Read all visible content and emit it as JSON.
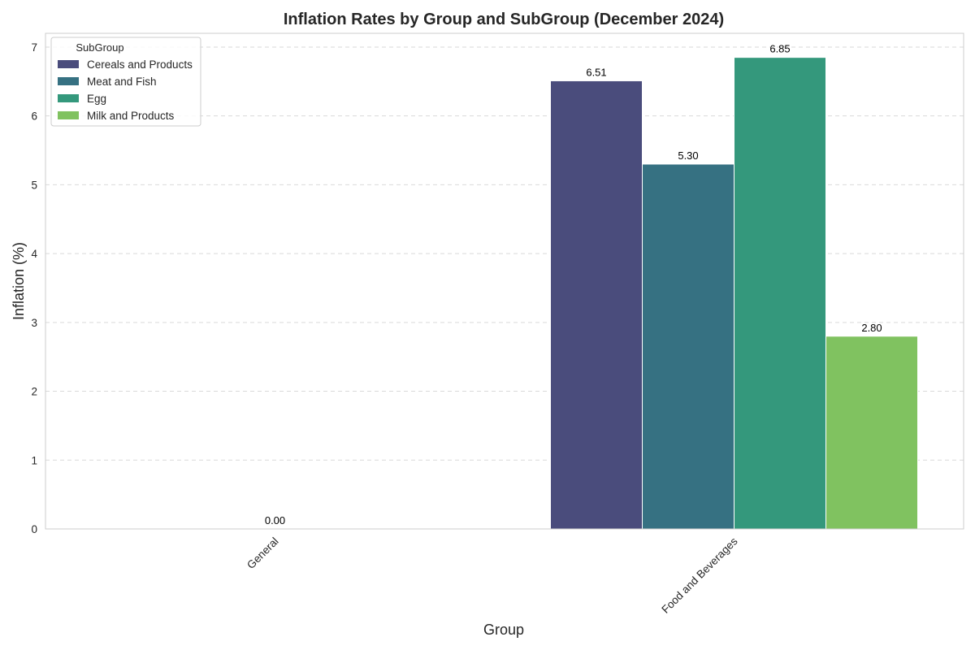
{
  "chart_data": {
    "type": "bar",
    "title": "Inflation Rates by Group and SubGroup (December 2024)",
    "xlabel": "Group",
    "ylabel": "Inflation (%)",
    "categories": [
      "General",
      "Food and Beverages"
    ],
    "series": [
      {
        "name": "Cereals and Products",
        "color": "#4a4c7c",
        "values": [
          0,
          6.51
        ]
      },
      {
        "name": "Meat and Fish",
        "color": "#367182",
        "values": [
          0,
          5.3
        ]
      },
      {
        "name": "Egg",
        "color": "#34987c",
        "values": [
          0,
          6.85
        ]
      },
      {
        "name": "Milk and Products",
        "color": "#80c260",
        "values": [
          0,
          2.8
        ]
      }
    ],
    "data_labels": [
      {
        "text": "0.00",
        "category": 0,
        "value": 0
      },
      {
        "text": "6.51",
        "category": 1,
        "series": 0,
        "value": 6.51
      },
      {
        "text": "5.30",
        "category": 1,
        "series": 1,
        "value": 5.3
      },
      {
        "text": "6.85",
        "category": 1,
        "series": 2,
        "value": 6.85
      },
      {
        "text": "2.80",
        "category": 1,
        "series": 3,
        "value": 2.8
      }
    ],
    "ylim": [
      0,
      7.2
    ],
    "yticks": [
      "0",
      "1",
      "2",
      "3",
      "4",
      "5",
      "6",
      "7"
    ],
    "legend": {
      "title": "SubGroup",
      "placement": "top-left"
    },
    "grid": "y-dashed"
  }
}
